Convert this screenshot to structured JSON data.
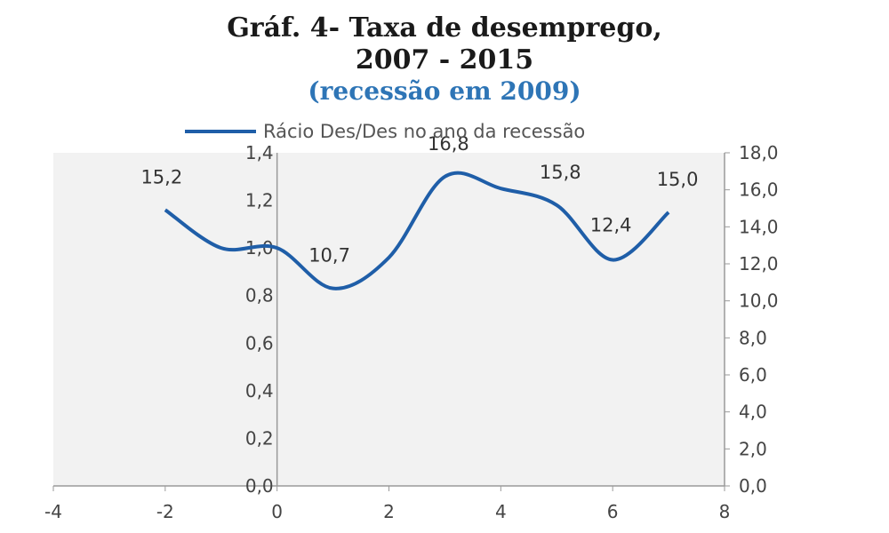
{
  "chart_data": {
    "type": "line",
    "title": "Gráf. 4- Taxa de desemprego,",
    "title_line2": "2007 - 2015",
    "subtitle": "(recessão em 2009)",
    "legend": {
      "label": "Rácio Des/Des no ano da recessão",
      "placement": "top"
    },
    "x_ticks": [
      "-4",
      "-2",
      "0",
      "2",
      "4",
      "6",
      "8"
    ],
    "y_left_ticks": [
      "0,0",
      "0,2",
      "0,4",
      "0,6",
      "0,8",
      "1,0",
      "1,2",
      "1,4"
    ],
    "y_right_ticks": [
      "0,0",
      "2,0",
      "4,0",
      "6,0",
      "8,0",
      "10,0",
      "12,0",
      "14,0",
      "16,0",
      "18,0"
    ],
    "xlim": [
      -4,
      8
    ],
    "ylim_left": [
      0,
      1.4
    ],
    "ylim_right": [
      0,
      18
    ],
    "series": [
      {
        "color": "#1f5ea8",
        "x": [
          -2,
          -1,
          0,
          1,
          2,
          3,
          4,
          5,
          6,
          7
        ],
        "y": [
          1.16,
          1.0,
          1.0,
          0.83,
          0.96,
          1.3,
          1.25,
          1.18,
          0.95,
          1.15
        ]
      }
    ],
    "data_labels": [
      {
        "text": "15,2",
        "x": -2,
        "y": 1.16
      },
      {
        "text": "10,7",
        "x": 1,
        "y": 0.83
      },
      {
        "text": "16,8",
        "x": 3,
        "y": 1.3
      },
      {
        "text": "15,8",
        "x": 5,
        "y": 1.18
      },
      {
        "text": "12,4",
        "x": 6,
        "y": 0.95
      },
      {
        "text": "15,0",
        "x": 7,
        "y": 1.15
      }
    ],
    "reference_line_x": 0,
    "colors": {
      "line": "#1f5ea8",
      "subtitle": "#2e75b6",
      "plot_background": "#f2f2f2"
    }
  }
}
